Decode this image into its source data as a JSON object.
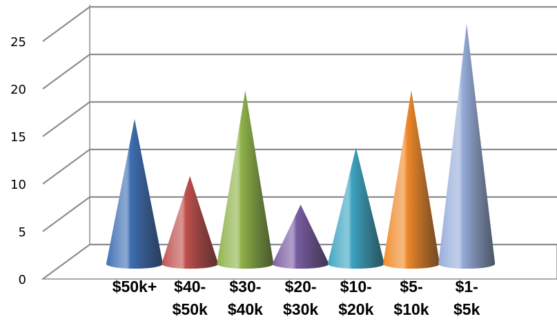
{
  "chart_data": {
    "type": "bar",
    "bar_shape": "3d-cone",
    "title": "",
    "xlabel": "",
    "ylabel": "",
    "ylim": [
      0,
      25
    ],
    "yticks": [
      0,
      5,
      10,
      15,
      20,
      25
    ],
    "grid": true,
    "legend": "none",
    "categories": [
      [
        "$50k+"
      ],
      [
        "$40-",
        "$50k"
      ],
      [
        "$30-",
        "$40k"
      ],
      [
        "$20-",
        "$30k"
      ],
      [
        "$10-",
        "$20k"
      ],
      [
        "$5-",
        "$10k"
      ],
      [
        "$1-",
        "$5k"
      ]
    ],
    "values": [
      15,
      9,
      18,
      6,
      12,
      18,
      25
    ],
    "colors": [
      "#3f6fb4",
      "#c0504d",
      "#8fb34a",
      "#7a5ea3",
      "#3da5c1",
      "#f08a2b",
      "#97add9"
    ]
  }
}
